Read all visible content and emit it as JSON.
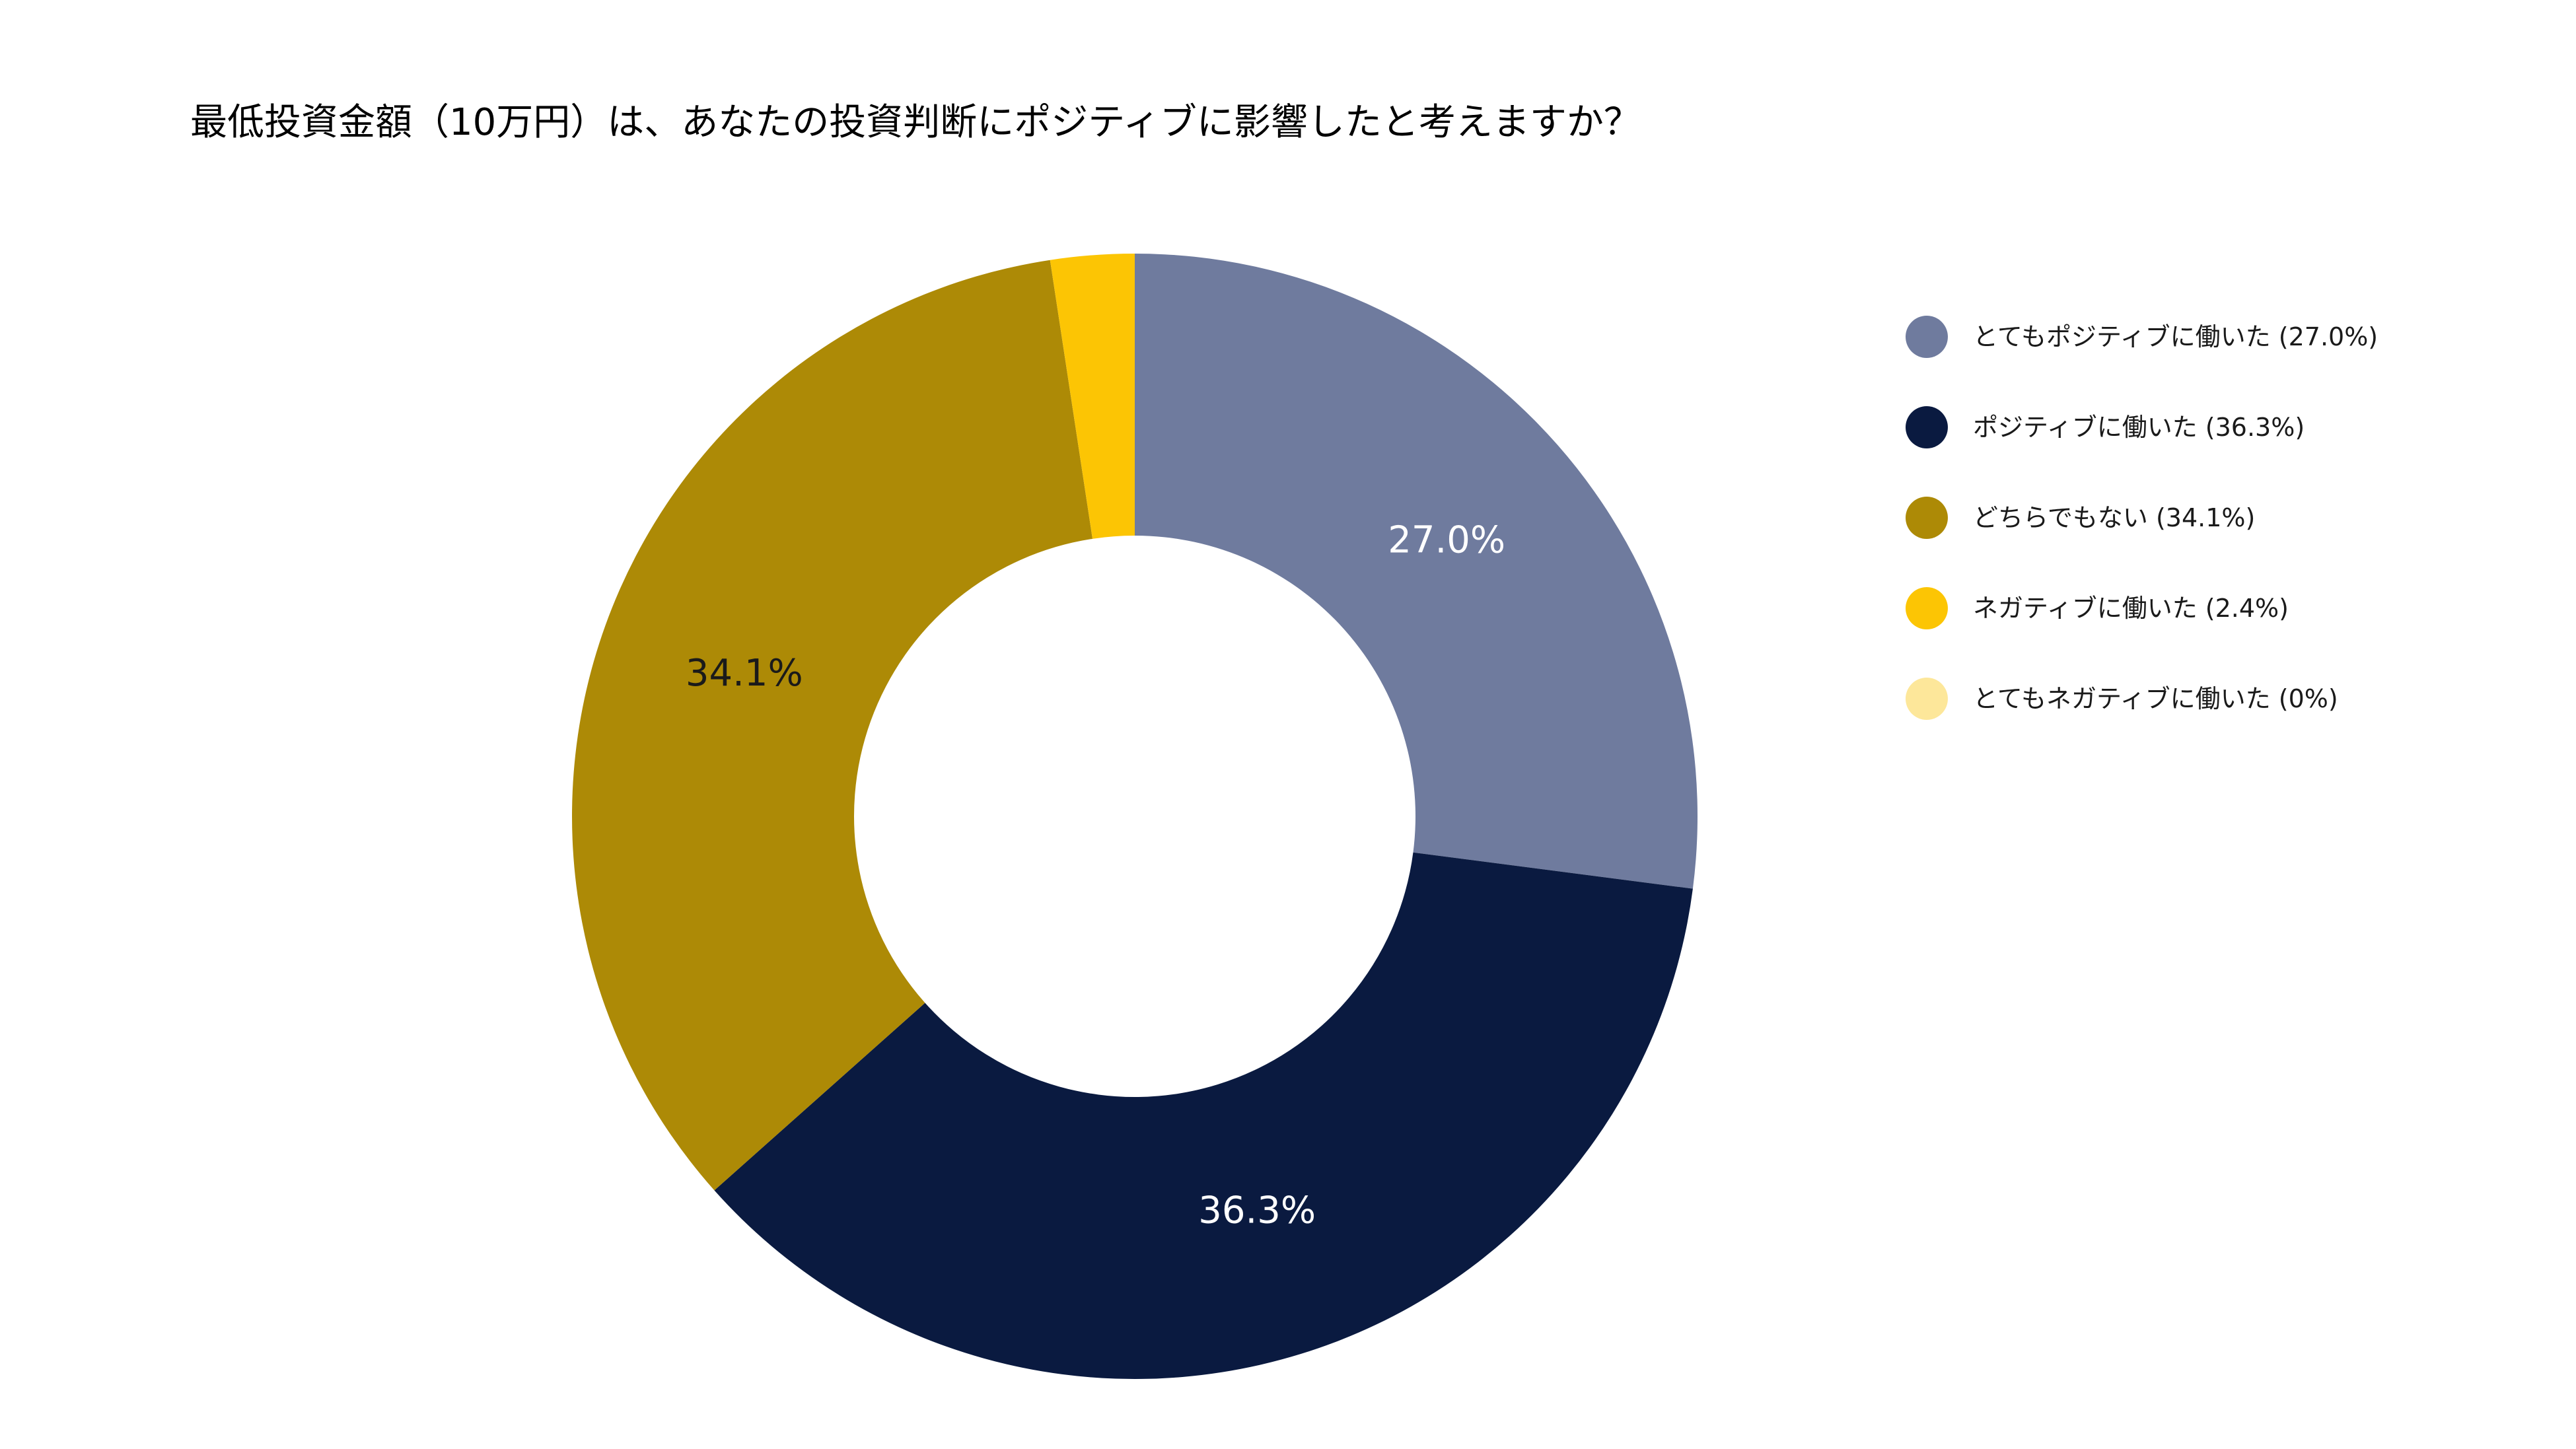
{
  "chart_data": {
    "type": "pie",
    "donut": true,
    "title": "最低投資金額（10万円）は、あなたの投資判断にポジティブに影響したと考えますか？",
    "categories": [
      "とてもポジティブに働いた",
      "ポジティブに働いた",
      "どちらでもない",
      "ネガティブに働いた",
      "とてもネガティブに働いた"
    ],
    "values": [
      27.0,
      36.3,
      34.1,
      2.4,
      0
    ],
    "unit": "%",
    "data_labels": [
      "27.0%",
      "36.3%",
      "34.1%",
      "",
      ""
    ],
    "legend_labels": [
      "とてもポジティブに働いた (27.0%)",
      "ポジティブに働いた (36.3%)",
      "どちらでもない (34.1%)",
      "ネガティブに働いた (2.4%)",
      "とてもネガティブに働いた (0%)"
    ],
    "colors": [
      "#6f7b9e",
      "#0a1a40",
      "#ad8a06",
      "#fcc504",
      "#fde79a"
    ],
    "label_colors": [
      "#ffffff",
      "#ffffff",
      "#1a1a1a",
      "#1a1a1a",
      "#1a1a1a"
    ],
    "legend_position": "right"
  }
}
